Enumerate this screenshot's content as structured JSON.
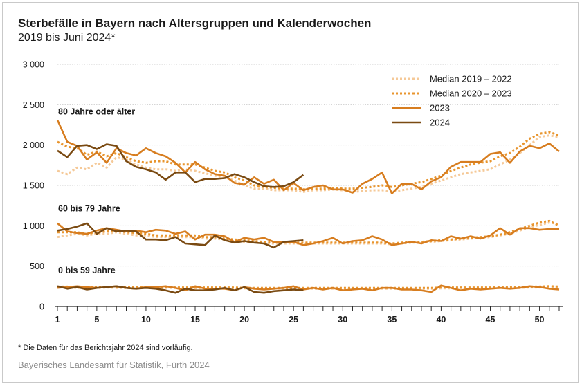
{
  "colors": {
    "median_2019_2022": "#f5c998",
    "median_2020_2023": "#e8952e",
    "y2023": "#d77d1f",
    "y2024": "#7a4a12"
  },
  "chart_data": {
    "type": "line",
    "title": "Sterbefälle in Bayern nach Altersgruppen und Kalenderwochen",
    "subtitle": "2019 bis Juni 2024*",
    "xlabel": "",
    "ylabel": "",
    "xlim": [
      1,
      52
    ],
    "ylim": [
      0,
      3000
    ],
    "y_ticks": [
      {
        "value": 0,
        "label": "0"
      },
      {
        "value": 500,
        "label": "500"
      },
      {
        "value": 1000,
        "label": "1 000"
      },
      {
        "value": 1500,
        "label": "1 500"
      },
      {
        "value": 2000,
        "label": "2 000"
      },
      {
        "value": 2500,
        "label": "2 500"
      },
      {
        "value": 3000,
        "label": "3 000"
      }
    ],
    "x_ticks": [
      1,
      5,
      10,
      15,
      20,
      25,
      30,
      35,
      40,
      45,
      50
    ],
    "grid": "horizontal",
    "legend_position": "top-right",
    "legend": [
      {
        "key": "median_2019_2022",
        "label": "Median 2019 – 2022",
        "style": "dotted-light"
      },
      {
        "key": "median_2020_2023",
        "label": "Median 2020 – 2023",
        "style": "dotted"
      },
      {
        "key": "y2023",
        "label": "2023",
        "style": "solid"
      },
      {
        "key": "y2024",
        "label": "2024",
        "style": "solid-dark"
      }
    ],
    "groups": [
      {
        "label": "80 Jahre oder älter",
        "label_y": 2380,
        "series": [
          {
            "key": "median_2019_2022",
            "values": [
              1680,
              1640,
              1720,
              1700,
              1780,
              1720,
              1850,
              1820,
              1760,
              1720,
              1700,
              1700,
              1680,
              1700,
              1680,
              1650,
              1620,
              1600,
              1560,
              1500,
              1460,
              1460,
              1440,
              1440,
              1440,
              1420,
              1440,
              1440,
              1450,
              1440,
              1420,
              1430,
              1440,
              1440,
              1420,
              1440,
              1460,
              1480,
              1520,
              1560,
              1600,
              1640,
              1660,
              1680,
              1700,
              1760,
              1820,
              1900,
              2000,
              2100,
              2120,
              2100
            ]
          },
          {
            "key": "median_2020_2023",
            "values": [
              2040,
              1980,
              1960,
              1880,
              1920,
              1860,
              1900,
              1850,
              1800,
              1780,
              1800,
              1800,
              1760,
              1760,
              1760,
              1720,
              1680,
              1660,
              1600,
              1560,
              1500,
              1480,
              1470,
              1460,
              1460,
              1450,
              1460,
              1460,
              1470,
              1460,
              1460,
              1470,
              1480,
              1500,
              1480,
              1500,
              1520,
              1540,
              1580,
              1620,
              1680,
              1720,
              1760,
              1780,
              1800,
              1860,
              1900,
              1980,
              2080,
              2140,
              2160,
              2120
            ]
          },
          {
            "key": "y2023",
            "values": [
              2310,
              2040,
              1990,
              1820,
              1910,
              1780,
              1960,
              1900,
              1870,
              1960,
              1900,
              1860,
              1780,
              1660,
              1790,
              1700,
              1640,
              1620,
              1530,
              1510,
              1600,
              1520,
              1570,
              1440,
              1530,
              1440,
              1480,
              1500,
              1450,
              1450,
              1410,
              1520,
              1580,
              1660,
              1400,
              1520,
              1520,
              1450,
              1550,
              1600,
              1730,
              1790,
              1790,
              1790,
              1890,
              1910,
              1780,
              1920,
              1990,
              1960,
              2020,
              1920
            ]
          },
          {
            "key": "y2024",
            "values": [
              1930,
              1850,
              1990,
              2000,
              1950,
              2010,
              1990,
              1800,
              1730,
              1700,
              1660,
              1570,
              1660,
              1660,
              1540,
              1580,
              1580,
              1590,
              1640,
              1600,
              1540,
              1490,
              1480,
              1490,
              1540,
              1630
            ]
          }
        ]
      },
      {
        "label": "60 bis 79 Jahre",
        "label_y": 1180,
        "series": [
          {
            "key": "median_2019_2022",
            "values": [
              860,
              880,
              900,
              880,
              900,
              900,
              920,
              900,
              880,
              880,
              860,
              860,
              860,
              860,
              860,
              840,
              840,
              830,
              820,
              800,
              800,
              780,
              780,
              780,
              780,
              780,
              780,
              780,
              780,
              780,
              780,
              780,
              780,
              780,
              770,
              780,
              790,
              790,
              800,
              810,
              820,
              830,
              840,
              850,
              860,
              880,
              900,
              940,
              980,
              1010,
              1040,
              1020
            ]
          },
          {
            "key": "median_2020_2023",
            "values": [
              920,
              920,
              920,
              900,
              920,
              930,
              940,
              920,
              910,
              900,
              880,
              880,
              880,
              880,
              880,
              860,
              860,
              840,
              830,
              820,
              810,
              800,
              800,
              800,
              790,
              790,
              790,
              790,
              790,
              790,
              790,
              790,
              790,
              790,
              780,
              790,
              800,
              800,
              810,
              820,
              830,
              840,
              850,
              860,
              870,
              890,
              920,
              960,
              1000,
              1040,
              1060,
              1000
            ]
          },
          {
            "key": "y2023",
            "values": [
              1030,
              930,
              910,
              900,
              940,
              970,
              950,
              930,
              940,
              920,
              950,
              940,
              900,
              930,
              830,
              890,
              890,
              870,
              800,
              850,
              830,
              850,
              800,
              800,
              800,
              760,
              780,
              810,
              850,
              780,
              810,
              820,
              870,
              830,
              760,
              780,
              800,
              780,
              820,
              810,
              870,
              840,
              870,
              840,
              880,
              970,
              890,
              970,
              970,
              950,
              960,
              960
            ]
          },
          {
            "key": "y2024",
            "values": [
              940,
              960,
              990,
              1030,
              900,
              970,
              930,
              940,
              930,
              830,
              830,
              820,
              860,
              780,
              770,
              760,
              880,
              820,
              790,
              810,
              790,
              780,
              730,
              800,
              810,
              820
            ]
          }
        ]
      },
      {
        "label": "0 bis 59 Jahre",
        "label_y": 410,
        "series": [
          {
            "key": "median_2019_2022",
            "values": [
              240,
              235,
              230,
              230,
              230,
              235,
              230,
              230,
              230,
              230,
              230,
              230,
              230,
              225,
              225,
              225,
              225,
              225,
              225,
              225,
              220,
              220,
              220,
              220,
              220,
              220,
              220,
              220,
              220,
              220,
              220,
              220,
              220,
              220,
              220,
              220,
              220,
              220,
              220,
              225,
              225,
              225,
              225,
              225,
              225,
              230,
              230,
              230,
              235,
              235,
              240,
              235
            ]
          },
          {
            "key": "median_2020_2023",
            "values": [
              245,
              245,
              240,
              240,
              240,
              245,
              240,
              240,
              240,
              240,
              240,
              240,
              235,
              235,
              235,
              235,
              235,
              235,
              235,
              230,
              230,
              230,
              230,
              230,
              230,
              230,
              230,
              230,
              230,
              230,
              230,
              230,
              230,
              230,
              230,
              230,
              230,
              230,
              230,
              235,
              235,
              235,
              235,
              235,
              235,
              240,
              240,
              240,
              245,
              245,
              250,
              245
            ]
          },
          {
            "key": "y2023",
            "values": [
              230,
              240,
              250,
              240,
              230,
              240,
              250,
              230,
              220,
              240,
              240,
              250,
              230,
              200,
              250,
              220,
              220,
              220,
              200,
              240,
              220,
              210,
              220,
              230,
              250,
              210,
              230,
              210,
              230,
              200,
              210,
              220,
              200,
              230,
              230,
              210,
              210,
              200,
              180,
              260,
              230,
              200,
              220,
              210,
              220,
              230,
              220,
              230,
              250,
              240,
              220,
              210
            ]
          },
          {
            "key": "y2024",
            "values": [
              250,
              220,
              240,
              210,
              230,
              240,
              250,
              230,
              220,
              230,
              220,
              200,
              170,
              220,
              200,
              200,
              210,
              230,
              200,
              240,
              180,
              170,
              190,
              200,
              210,
              200
            ]
          }
        ]
      }
    ]
  },
  "footnote": "* Die Daten für das Berichtsjahr 2024 sind vorläufig.",
  "source": "Bayerisches Landesamt für Statistik, Fürth 2024"
}
